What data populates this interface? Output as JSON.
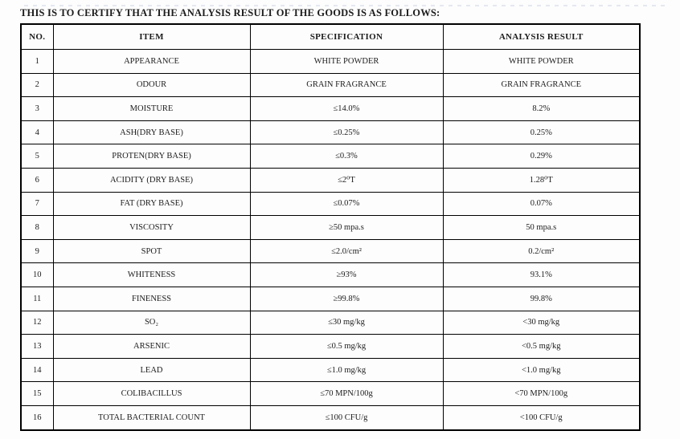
{
  "page": {
    "title_line": "THIS IS TO CERTIFY THAT THE ANALYSIS RESULT OF THE GOODS IS AS FOLLOWS:"
  },
  "table": {
    "headers": {
      "no": "NO.",
      "item": "ITEM",
      "specification": "SPECIFICATION",
      "analysis_result": "ANALYSIS RESULT"
    },
    "rows": [
      {
        "no": "1",
        "item": "APPEARANCE",
        "spec": "WHITE POWDER",
        "result": "WHITE POWDER"
      },
      {
        "no": "2",
        "item": "ODOUR",
        "spec": "GRAIN FRAGRANCE",
        "result": "GRAIN FRAGRANCE"
      },
      {
        "no": "3",
        "item": "MOISTURE",
        "spec": "≤14.0%",
        "result": "8.2%"
      },
      {
        "no": "4",
        "item": "ASH(DRY BASE)",
        "spec": "≤0.25%",
        "result": "0.25%"
      },
      {
        "no": "5",
        "item": "PROTEN(DRY BASE)",
        "spec": "≤0.3%",
        "result": "0.29%"
      },
      {
        "no": "6",
        "item": "ACIDITY (DRY BASE)",
        "spec": "≤2⁰T",
        "result": "1.28⁰T"
      },
      {
        "no": "7",
        "item": "FAT (DRY BASE)",
        "spec": "≤0.07%",
        "result": "0.07%"
      },
      {
        "no": "8",
        "item": "VISCOSITY",
        "spec": "≥50 mpa.s",
        "result": "50 mpa.s"
      },
      {
        "no": "9",
        "item": "SPOT",
        "spec": "≤2.0/cm²",
        "result": "0.2/cm²"
      },
      {
        "no": "10",
        "item": "WHITENESS",
        "spec": "≥93%",
        "result": "93.1%"
      },
      {
        "no": "11",
        "item": "FINENESS",
        "spec": "≥99.8%",
        "result": "99.8%"
      },
      {
        "no": "12",
        "item": "SO₂",
        "spec": "≤30 mg/kg",
        "result": "<30 mg/kg"
      },
      {
        "no": "13",
        "item": "ARSENIC",
        "spec": "≤0.5 mg/kg",
        "result": "<0.5 mg/kg"
      },
      {
        "no": "14",
        "item": "LEAD",
        "spec": "≤1.0 mg/kg",
        "result": "<1.0 mg/kg"
      },
      {
        "no": "15",
        "item": "COLIBACILLUS",
        "spec": "≤70 MPN/100g",
        "result": "<70 MPN/100g"
      },
      {
        "no": "16",
        "item": "TOTAL BACTERIAL COUNT",
        "spec": "≤100 CFU/g",
        "result": "<100 CFU/g"
      }
    ]
  },
  "colors": {
    "text": "#1c1c1c",
    "border": "#000000",
    "background": "#fdfdfd"
  }
}
